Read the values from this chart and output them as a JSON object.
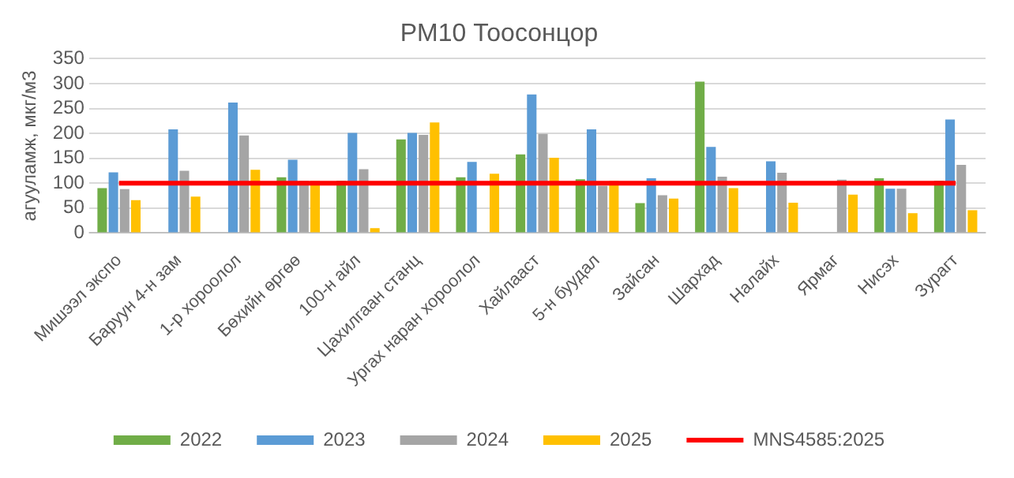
{
  "chart_data": {
    "type": "bar",
    "title": "PM10 Тоосонцор",
    "ylabel": "агууламж, мкг/м3",
    "categories": [
      "Мишээл экспо",
      "Баруун 4-н зам",
      "1-р хороолол",
      "Бөхийн өргөө",
      "100-н айл",
      "Цахилгаан станц",
      "Ургах наран хороолол",
      "Хайлааст",
      "5-н буудал",
      "Зайсан",
      "Шархад",
      "Налайх",
      "Ярмаг",
      "Нисэх",
      "Зурагт"
    ],
    "series": [
      {
        "name": "2022",
        "color": "#70ad47",
        "values": [
          90,
          null,
          null,
          112,
          105,
          188,
          112,
          158,
          108,
          60,
          304,
          null,
          null,
          110,
          105
        ]
      },
      {
        "name": "2023",
        "color": "#5b9bd5",
        "values": [
          122,
          208,
          262,
          147,
          201,
          201,
          143,
          278,
          208,
          110,
          173,
          144,
          null,
          89,
          228
        ]
      },
      {
        "name": "2024",
        "color": "#a5a5a5",
        "values": [
          88,
          125,
          196,
          105,
          128,
          197,
          null,
          199,
          95,
          76,
          113,
          121,
          107,
          89,
          137
        ]
      },
      {
        "name": "2025",
        "color": "#ffc000",
        "values": [
          66,
          73,
          127,
          105,
          10,
          222,
          119,
          151,
          105,
          69,
          90,
          61,
          77,
          40,
          46
        ]
      },
      {
        "name": "MNS4585:2025",
        "type": "line",
        "color": "#ff0000",
        "values": [
          100,
          100,
          100,
          100,
          100,
          100,
          100,
          100,
          100,
          100,
          100,
          100,
          100,
          100,
          100
        ]
      }
    ],
    "ylim": [
      0,
      350
    ],
    "yticks": [
      0,
      50,
      100,
      150,
      200,
      250,
      300,
      350
    ],
    "grid": "y",
    "legend": "bottom"
  }
}
